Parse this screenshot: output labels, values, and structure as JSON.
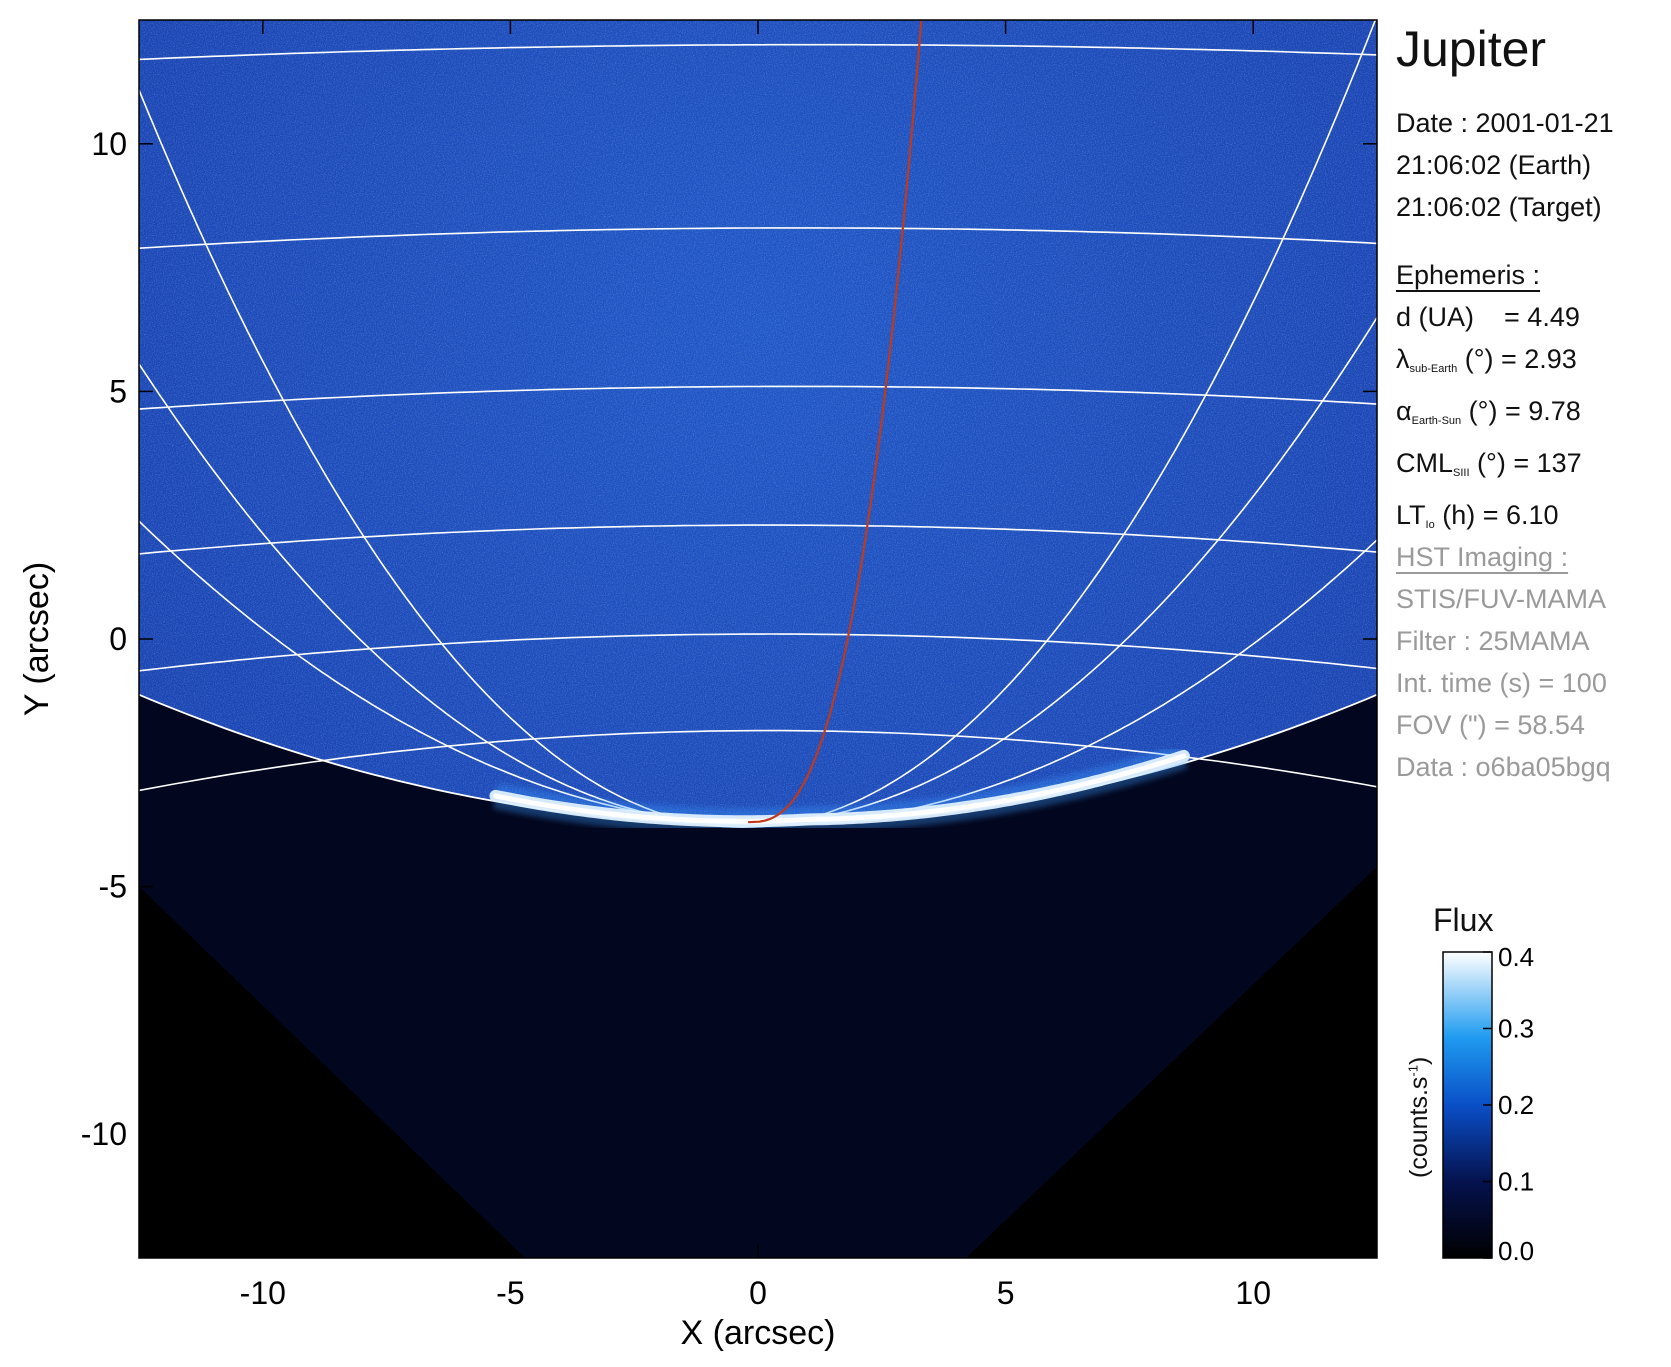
{
  "chart_data": {
    "type": "heatmap",
    "xlabel": "X (arcsec)",
    "ylabel": "Y (arcsec)",
    "xlim": [
      -12.5,
      12.5
    ],
    "ylim": [
      -12.5,
      12.5
    ],
    "x_ticks": [
      -10,
      -5,
      0,
      5,
      10
    ],
    "y_ticks": [
      -10,
      -5,
      0,
      5,
      10
    ],
    "colorbar": {
      "title": "Flux",
      "unit_label": "(counts.s",
      "unit_exponent": "-1",
      "unit_close": ")",
      "range": [
        0.0,
        0.4
      ],
      "ticks": [
        "0.0",
        "0.1",
        "0.2",
        "0.3",
        "0.4"
      ]
    },
    "grid_lines": "white latitude/longitude lines",
    "io_footprint_color": "#c0391b"
  },
  "info": {
    "title": "Jupiter",
    "date_line": "Date : 2001-01-21",
    "earth_time": "21:06:02 (Earth)",
    "target_time": "21:06:02 (Target)",
    "ephemeris_heading": "Ephemeris :",
    "d_label": "d (UA)",
    "d_value": "= 4.49",
    "lambda_symbol": "λ",
    "lambda_sub": "sub-Earth",
    "lambda_rest": "(°) = 2.93",
    "alpha_symbol": "α",
    "alpha_sub": "Earth-Sun",
    "alpha_rest": "(°) = 9.78",
    "cml_label": "CML",
    "cml_sub": "SIII",
    "cml_rest": "(°) = 137",
    "lt_label": "LT",
    "lt_sub": "Io",
    "lt_rest": "(h) = 6.10",
    "hst_heading": "HST Imaging :",
    "instrument": "STIS/FUV-MAMA",
    "filter": "Filter : 25MAMA",
    "int_time": "Int. time (s) = 100",
    "fov": "FOV (\") = 58.54",
    "data_id": "Data : o6ba05bgq"
  }
}
